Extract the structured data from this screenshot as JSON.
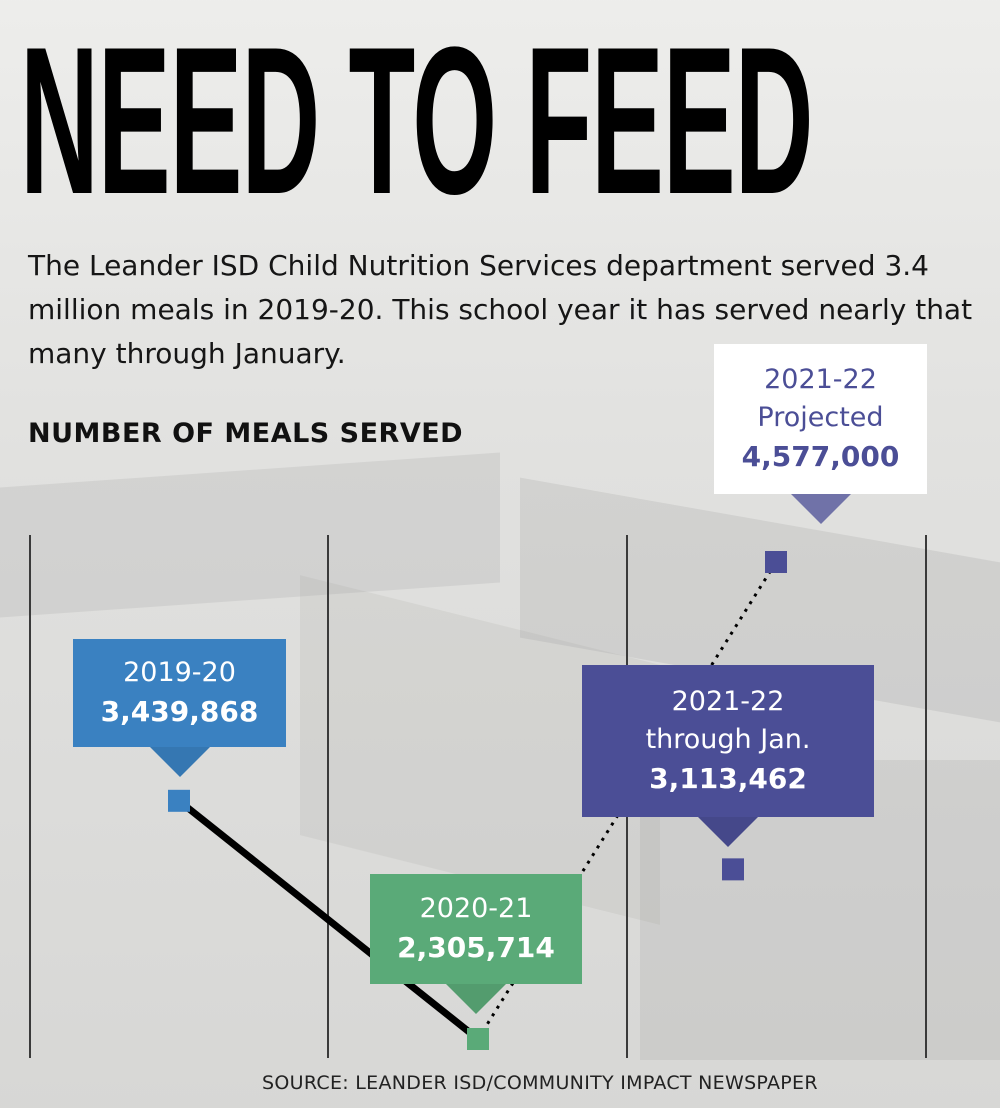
{
  "headline": "NEED TO FEED",
  "intro": "The Leander ISD Child Nutrition Services department served 3.4 million meals in 2019-20. This school year it has served nearly that many through January.",
  "source": "SOURCE: LEANDER ISD/COMMUNITY IMPACT NEWSPAPER",
  "colors": {
    "blue": "#3a81c1",
    "green": "#5aaa78",
    "purple": "#4b4e96",
    "white": "#ffffff"
  },
  "chart_data": {
    "type": "line",
    "title": "NUMBER OF MEALS SERVED",
    "grid": "vertical lines",
    "points": [
      {
        "period": "2019-20",
        "extra": "",
        "value": 3439868,
        "value_label": "3,439,868",
        "color": "#3a81c1",
        "box": "#3a81c1"
      },
      {
        "period": "2020-21",
        "extra": "",
        "value": 2305714,
        "value_label": "2,305,714",
        "color": "#5aaa78",
        "box": "#5aaa78"
      },
      {
        "period": "2021-22",
        "extra": "through Jan.",
        "value": 3113462,
        "value_label": "3,113,462",
        "color": "#4b4e96",
        "box": "#4b4e96"
      },
      {
        "period": "2021-22",
        "extra": "Projected",
        "value": 4577000,
        "value_label": "4,577,000",
        "color": "#4b4e96",
        "box": "#ffffff"
      }
    ],
    "series": [
      {
        "style": "solid",
        "from": 0,
        "to": 1
      },
      {
        "style": "dotted",
        "from": 1,
        "to": 3
      }
    ]
  }
}
